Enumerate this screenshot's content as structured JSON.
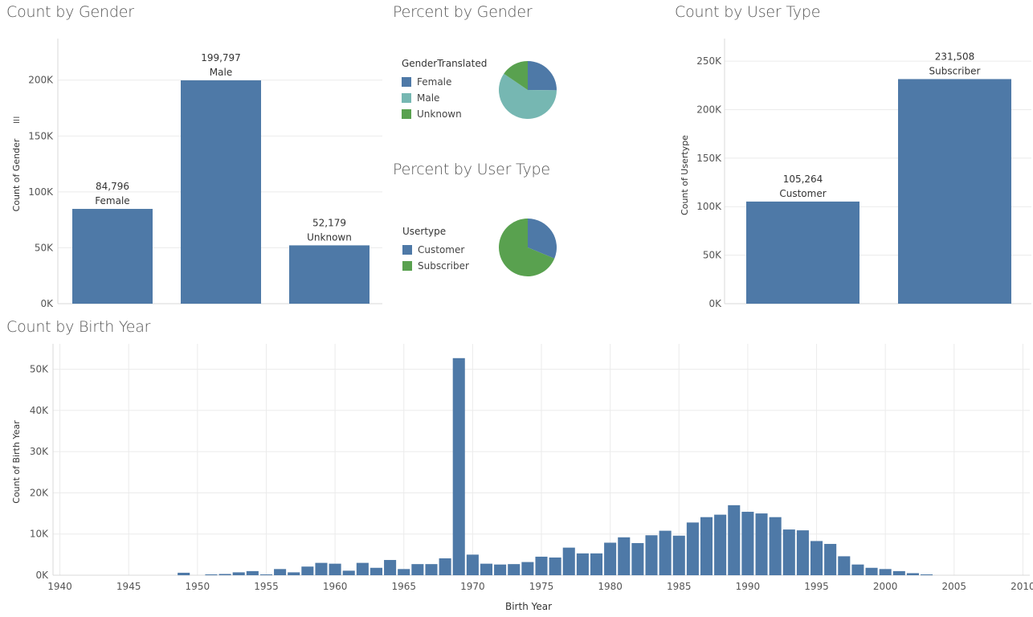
{
  "colors": {
    "blue": "#4e79a7",
    "teal": "#76b7b2",
    "green": "#59a14f",
    "grid": "#ebebeb",
    "axis": "#d9d9d9",
    "text": "#555555"
  },
  "titles": {
    "gender_count": "Count by Gender",
    "gender_percent": "Percent by Gender",
    "usertype_percent": "Percent by User Type",
    "usertype_count": "Count by User Type",
    "birth_year": "Count by Birth Year"
  },
  "legends": {
    "gender": {
      "title": "GenderTranslated",
      "items": [
        {
          "label": "Female",
          "color": "#4e79a7"
        },
        {
          "label": "Male",
          "color": "#76b7b2"
        },
        {
          "label": "Unknown",
          "color": "#59a14f"
        }
      ]
    },
    "usertype": {
      "title": "Usertype",
      "items": [
        {
          "label": "Customer",
          "color": "#4e79a7"
        },
        {
          "label": "Subscriber",
          "color": "#59a14f"
        }
      ]
    }
  },
  "chart_data": [
    {
      "id": "gender_count",
      "type": "bar",
      "title": "Count by Gender",
      "ylabel": "Count of Gender",
      "categories": [
        "Female",
        "Male",
        "Unknown"
      ],
      "values": [
        84796,
        199797,
        52179
      ],
      "value_labels": [
        "84,796",
        "199,797",
        "52,179"
      ],
      "ylim": [
        0,
        230000
      ],
      "yticks": [
        0,
        50000,
        100000,
        150000,
        200000
      ],
      "ytick_labels": [
        "0K",
        "50K",
        "100K",
        "150K",
        "200K"
      ],
      "grid": true
    },
    {
      "id": "gender_percent",
      "type": "pie",
      "title": "Percent by Gender",
      "categories": [
        "Female",
        "Male",
        "Unknown"
      ],
      "values": [
        84796,
        199797,
        52179
      ]
    },
    {
      "id": "usertype_percent",
      "type": "pie",
      "title": "Percent by User Type",
      "categories": [
        "Customer",
        "Subscriber"
      ],
      "values": [
        105264,
        231508
      ]
    },
    {
      "id": "usertype_count",
      "type": "bar",
      "title": "Count by User Type",
      "ylabel": "Count of Usertype",
      "categories": [
        "Customer",
        "Subscriber"
      ],
      "values": [
        105264,
        231508
      ],
      "value_labels": [
        "105,264",
        "231,508"
      ],
      "ylim": [
        0,
        265000
      ],
      "yticks": [
        0,
        50000,
        100000,
        150000,
        200000,
        250000
      ],
      "ytick_labels": [
        "0K",
        "50K",
        "100K",
        "150K",
        "200K",
        "250K"
      ],
      "grid": true
    },
    {
      "id": "birth_year",
      "type": "bar",
      "title": "Count by Birth Year",
      "xlabel": "Birth Year",
      "ylabel": "Count of Birth Year",
      "x": [
        1949,
        1951,
        1952,
        1953,
        1954,
        1955,
        1956,
        1957,
        1958,
        1959,
        1960,
        1961,
        1962,
        1963,
        1964,
        1965,
        1966,
        1967,
        1968,
        1969,
        1970,
        1971,
        1972,
        1973,
        1974,
        1975,
        1976,
        1977,
        1978,
        1979,
        1980,
        1981,
        1982,
        1983,
        1984,
        1985,
        1986,
        1987,
        1988,
        1989,
        1990,
        1991,
        1992,
        1993,
        1994,
        1995,
        1996,
        1997,
        1998,
        1999,
        2000,
        2001,
        2002,
        2003
      ],
      "values": [
        600,
        200,
        300,
        700,
        1000,
        200,
        1500,
        700,
        2100,
        3000,
        2800,
        1100,
        3000,
        1800,
        3700,
        1500,
        2700,
        2700,
        4100,
        52700,
        5000,
        2800,
        2600,
        2700,
        3200,
        4500,
        4300,
        6700,
        5300,
        5300,
        7900,
        9200,
        7800,
        9700,
        10800,
        9600,
        12800,
        14100,
        14700,
        17000,
        15400,
        15000,
        14100,
        11100,
        10900,
        8300,
        7600,
        4600,
        2600,
        1800,
        1500,
        1000,
        500,
        200
      ],
      "xlim": [
        1939.5,
        2010.5
      ],
      "xticks": [
        1940,
        1945,
        1950,
        1955,
        1960,
        1965,
        1970,
        1975,
        1980,
        1985,
        1990,
        1995,
        2000,
        2005,
        2010
      ],
      "ylim": [
        0,
        55000
      ],
      "yticks": [
        0,
        10000,
        20000,
        30000,
        40000,
        50000
      ],
      "ytick_labels": [
        "0K",
        "10K",
        "20K",
        "30K",
        "40K",
        "50K"
      ],
      "grid": true
    }
  ]
}
